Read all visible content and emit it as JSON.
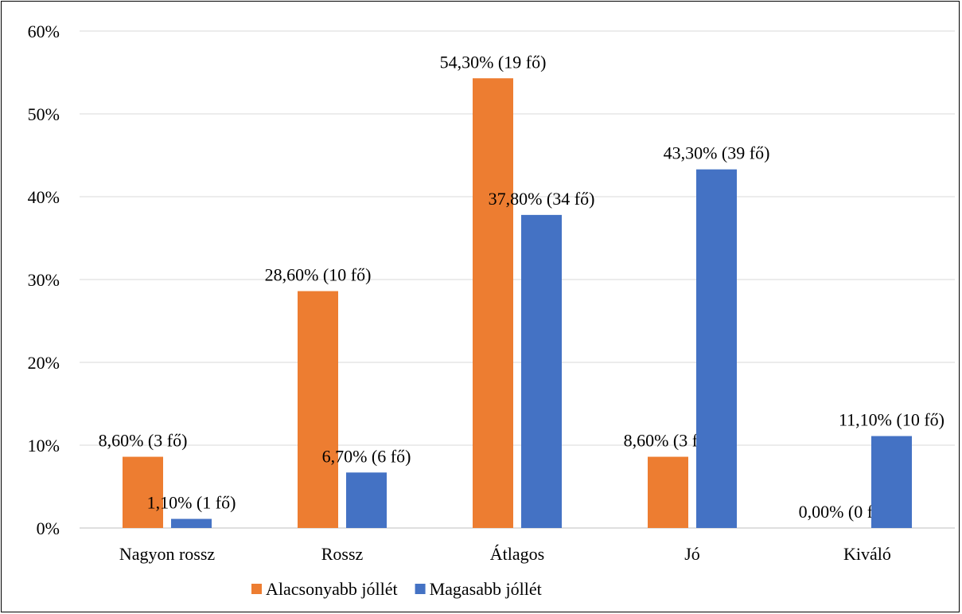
{
  "chart_data": {
    "type": "bar",
    "categories": [
      "Nagyon rossz",
      "Rossz",
      "Átlagos",
      "Jó",
      "Kiváló"
    ],
    "series": [
      {
        "name": "Alacsonyabb jóllét",
        "color": "#ED7D31",
        "values": [
          8.6,
          28.6,
          54.3,
          8.6,
          0.0
        ],
        "labels": [
          "8,60% (3 fő)",
          "28,60% (10 fő)",
          "54,30% (19 fő)",
          "8,60% (3 fő)",
          "0,00% (0 fő)"
        ]
      },
      {
        "name": "Magasabb jóllét",
        "color": "#4472C4",
        "values": [
          1.1,
          6.7,
          37.8,
          43.3,
          11.1
        ],
        "labels": [
          "1,10% (1 fő)",
          "6,70% (6 fő)",
          "37,80% (34 fő)",
          "43,30% (39 fő)",
          "11,10% (10 fő)"
        ]
      }
    ],
    "ylim": [
      0,
      60
    ],
    "yticks": [
      "0%",
      "10%",
      "20%",
      "30%",
      "40%",
      "50%",
      "60%"
    ],
    "grid": true,
    "legend_position": "bottom"
  }
}
